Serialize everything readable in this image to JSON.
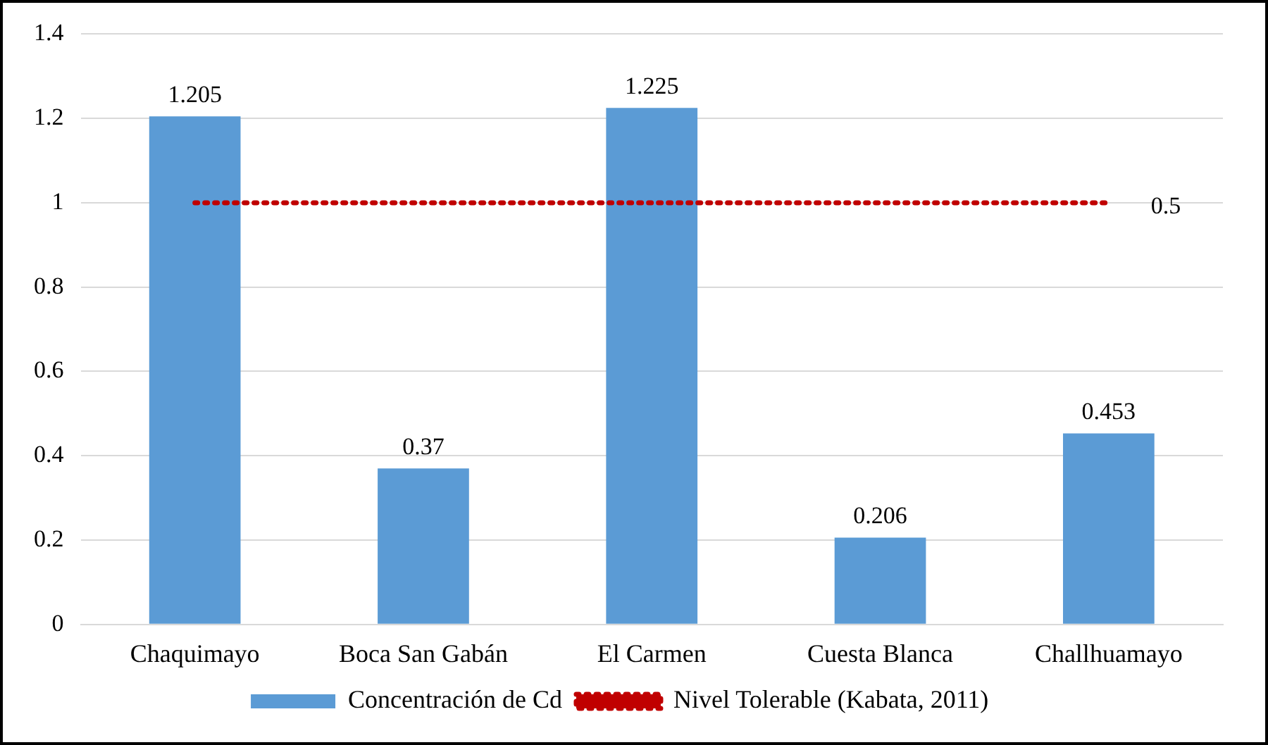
{
  "chart_data": {
    "type": "bar",
    "categories": [
      "Chaquimayo",
      "Boca San Gabán",
      "El Carmen",
      "Cuesta Blanca",
      "Challhuamayo"
    ],
    "series": [
      {
        "name": "Concentración de Cd",
        "color": "#5b9bd5",
        "values": [
          1.205,
          0.37,
          1.225,
          0.206,
          0.453
        ],
        "value_labels": [
          "1.205",
          "0.37",
          "1.225",
          "0.206",
          "0.453"
        ]
      },
      {
        "name": "Nivel Tolerable (Kabata, 2011)",
        "type": "line",
        "color": "#c00000",
        "line_style": "dotted",
        "marker": "none",
        "values": [
          1,
          1,
          1,
          1,
          1
        ]
      }
    ],
    "annotations": [
      "0.5"
    ],
    "ylim": [
      0,
      1.4
    ],
    "yticks": [
      0,
      0.2,
      0.4,
      0.6,
      0.8,
      1,
      1.2,
      1.4
    ],
    "grid": "y",
    "legend": "bottom"
  }
}
